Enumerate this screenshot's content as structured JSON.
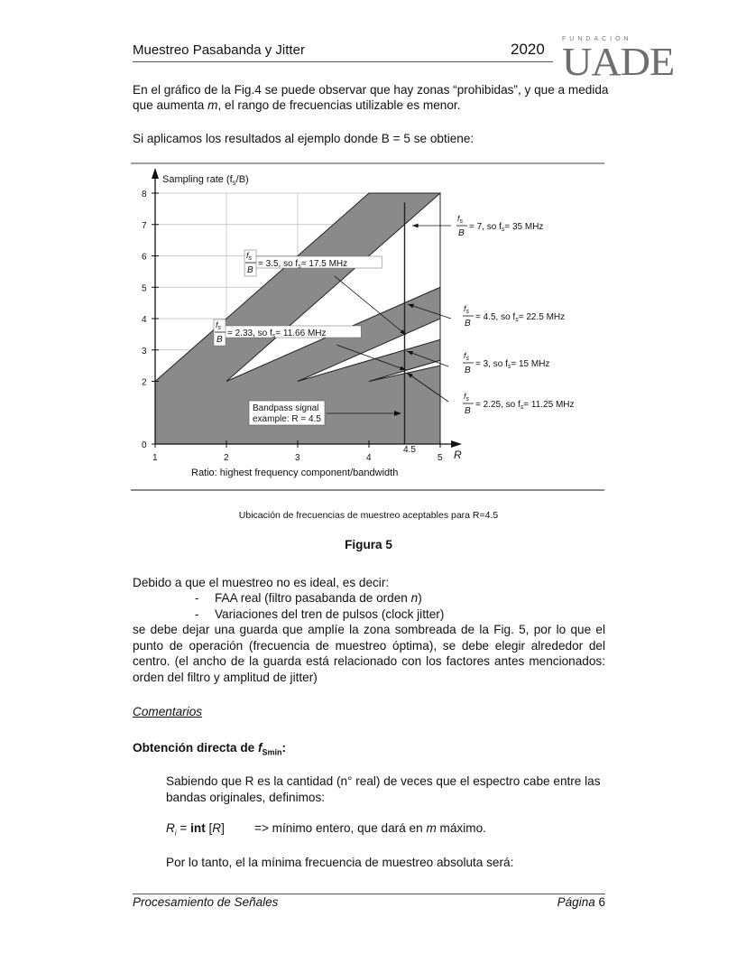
{
  "header": {
    "title": "Muestreo Pasabanda y Jitter",
    "year": "2020",
    "logo_top": "FUNDACIÓN",
    "logo_main": "UADE"
  },
  "intro": {
    "line1": "En el gráfico de la Fig.4 se puede observar que hay zonas “prohibidas”, y que a medida",
    "line2_a": "que aumenta ",
    "line2_m": "m",
    "line2_b": ", el rango de frecuencias utilizable es menor.",
    "line3": "Si aplicamos los resultados al ejemplo donde B = 5  se obtiene:"
  },
  "figure": {
    "y_title_a": "Sampling rate   (f",
    "y_title_sub": "s",
    "y_title_b": "/B)",
    "x_label": "Ratio: highest frequency component/bandwidth",
    "x_axis_symbol": "R",
    "x_ticks": [
      "1",
      "2",
      "3",
      "4",
      "5"
    ],
    "y_ticks": [
      "0",
      "2",
      "3",
      "4",
      "5",
      "6",
      "7",
      "8"
    ],
    "marker_label": "4.5",
    "frac_num": "f",
    "frac_num_sub": "s",
    "frac_den": "B",
    "annotations": [
      {
        "ratio": "= 7,  so  f",
        "sub": "s",
        "value": "= 35 MHz"
      },
      {
        "ratio": "= 3.5,  so  f",
        "sub": "s",
        "value": "= 17.5 MHz"
      },
      {
        "ratio": "= 4.5,  so  f",
        "sub": "s",
        "value": "= 22.5 MHz"
      },
      {
        "ratio": "= 2.33,  so  f",
        "sub": "s",
        "value": "= 11.66 MHz"
      },
      {
        "ratio": "= 3,  so  f",
        "sub": "s",
        "value": "= 15 MHz"
      },
      {
        "ratio": "= 2.25,  so  f",
        "sub": "s",
        "value": "= 11.25 MHz"
      }
    ],
    "example_line1": "Bandpass signal",
    "example_line2": "example:  R = 4.5",
    "caption": "Ubicación de frecuencias de muestreo aceptables para R=4.5",
    "number": "Figura 5",
    "shade_color": "#8a8a8a"
  },
  "body": {
    "debido": "Debido a que el muestreo no es ideal, es decir:",
    "bullet1_a": "FAA  real (filtro pasabanda de orden ",
    "bullet1_n": "n",
    "bullet1_b": ")",
    "bullet2": "Variaciones del tren de pulsos (clock jitter)",
    "bullet_dash": "-",
    "para_lines": [
      "se debe dejar una guarda que amplíe la zona sombreada de la Fig. 5, por lo que el",
      "punto de operación (frecuencia de muestreo óptima), se debe elegir alrededor del",
      "centro. (el ancho de la guarda está relacionado con los factores antes mencionados:"
    ],
    "para_last": "orden del filtro y amplitud de jitter)",
    "comentarios": "Comentarios",
    "obtencion_a": "Obtención directa de ",
    "obtencion_f": "f",
    "obtencion_sub": "Smin",
    "obtencion_colon": ":",
    "sabiendo1": "Sabiendo que R es la cantidad (n° real) de veces que el espectro cabe entre las",
    "sabiendo2": "bandas originales, definimos:",
    "ri_R": "R",
    "ri_sub": "i",
    "ri_eq": " = ",
    "ri_int": "int",
    "ri_arg_a": " [",
    "ri_arg_R": "R",
    "ri_arg_b": "]",
    "ri_arrow": "=>   mínimo entero, que dará en ",
    "ri_m": "m",
    "ri_end": " máximo.",
    "por_lo_tanto": "Por lo tanto, el la mínima frecuencia de muestreo absoluta será:"
  },
  "footer": {
    "left": "Procesamiento de Señales",
    "page_word": "Página",
    "page_num": "6"
  }
}
